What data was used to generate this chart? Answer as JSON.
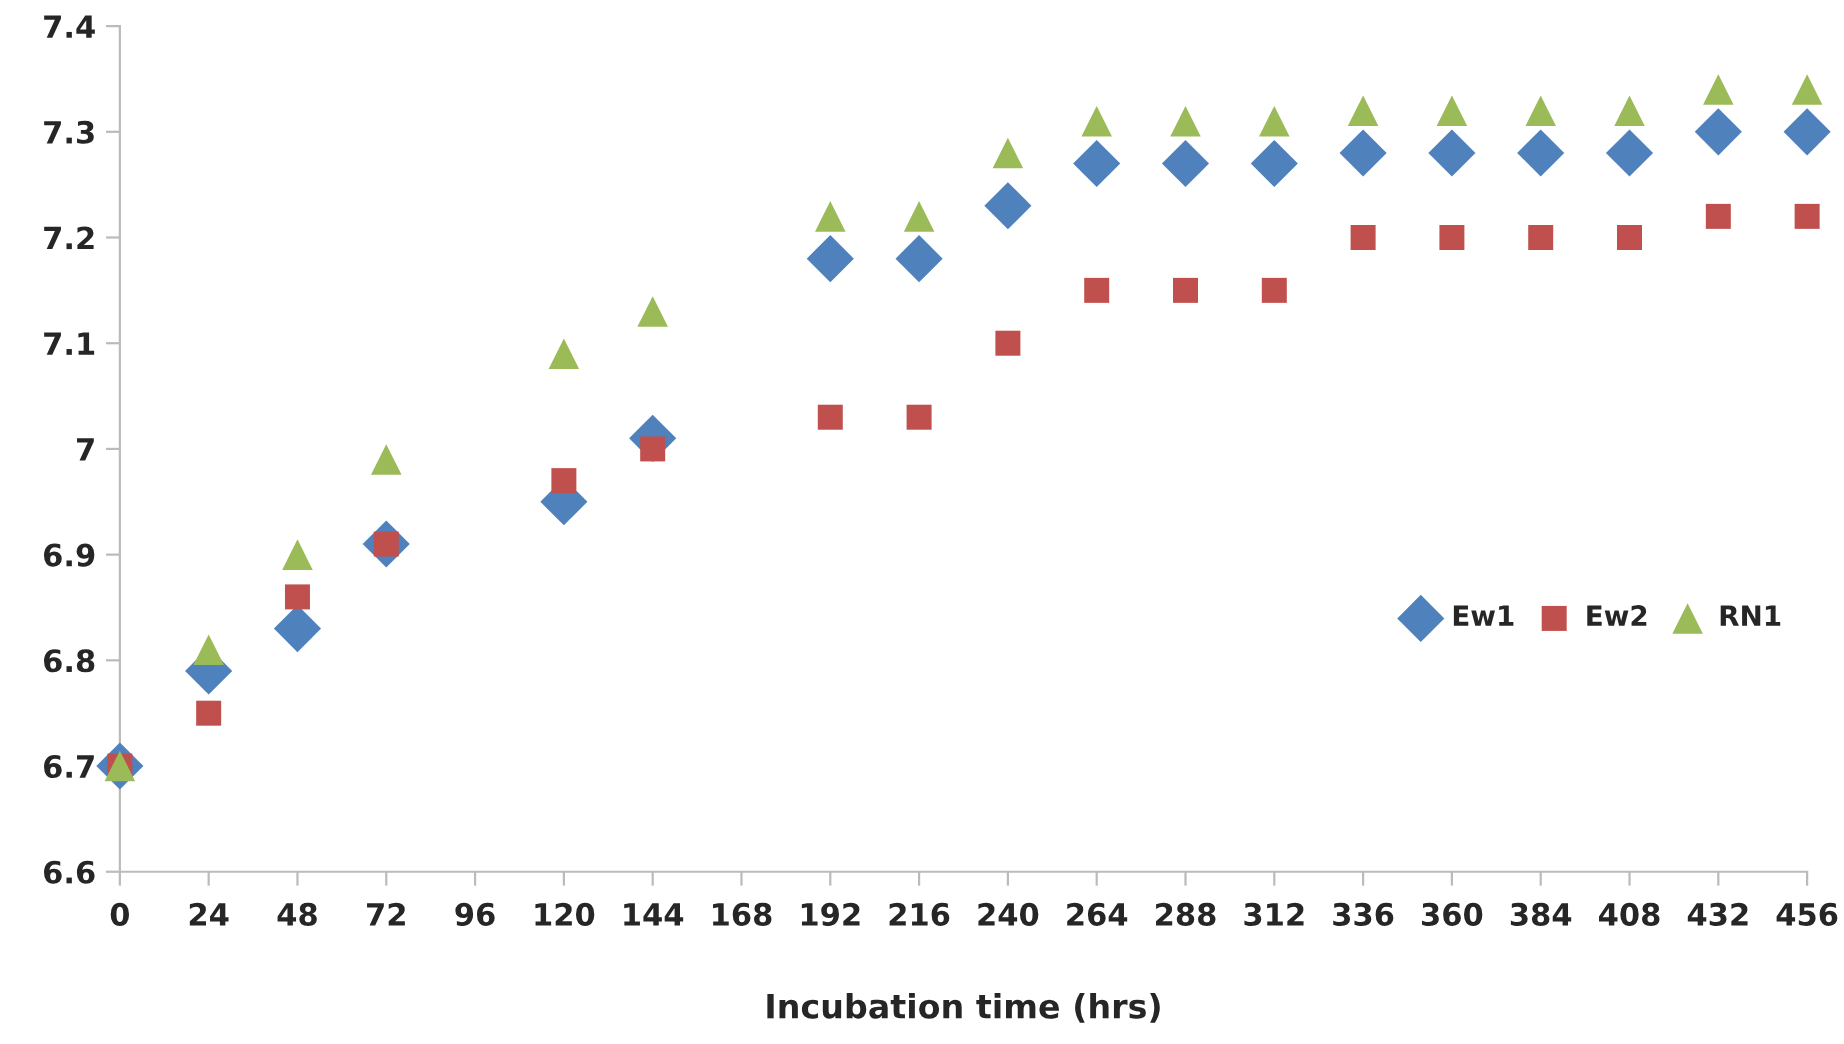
{
  "chart_data": {
    "type": "scatter",
    "xlabel": "Incubation time (hrs)",
    "x": [
      0,
      24,
      48,
      72,
      120,
      144,
      192,
      216,
      240,
      264,
      288,
      312,
      336,
      360,
      384,
      408,
      432,
      456
    ],
    "series": [
      {
        "name": "Ew1",
        "color": "#4f81bd",
        "marker": "diamond",
        "values": [
          6.7,
          6.79,
          6.83,
          6.91,
          6.95,
          7.01,
          7.18,
          7.18,
          7.23,
          7.27,
          7.27,
          7.27,
          7.28,
          7.28,
          7.28,
          7.28,
          7.3,
          7.3
        ]
      },
      {
        "name": "Ew2",
        "color": "#c0504d",
        "marker": "square",
        "values": [
          6.7,
          6.75,
          6.86,
          6.91,
          6.97,
          7.0,
          7.03,
          7.03,
          7.1,
          7.15,
          7.15,
          7.15,
          7.2,
          7.2,
          7.2,
          7.2,
          7.22,
          7.22
        ]
      },
      {
        "name": "RN1",
        "color": "#9bbb59",
        "marker": "triangle",
        "values": [
          6.7,
          6.81,
          6.9,
          6.99,
          7.09,
          7.13,
          7.22,
          7.22,
          7.28,
          7.31,
          7.31,
          7.31,
          7.32,
          7.32,
          7.32,
          7.32,
          7.34,
          7.34
        ]
      }
    ],
    "xlim": [
      0,
      456
    ],
    "xticks": [
      0,
      24,
      48,
      72,
      96,
      120,
      144,
      168,
      192,
      216,
      240,
      264,
      288,
      312,
      336,
      360,
      384,
      408,
      432,
      456
    ],
    "ylim": [
      6.6,
      7.4
    ],
    "yticks": [
      6.6,
      6.7,
      6.8,
      6.9,
      {
        "value": 7.0,
        "label": "7"
      },
      7.1,
      7.2,
      7.3,
      7.4
    ],
    "grid": false,
    "legend": "right"
  }
}
